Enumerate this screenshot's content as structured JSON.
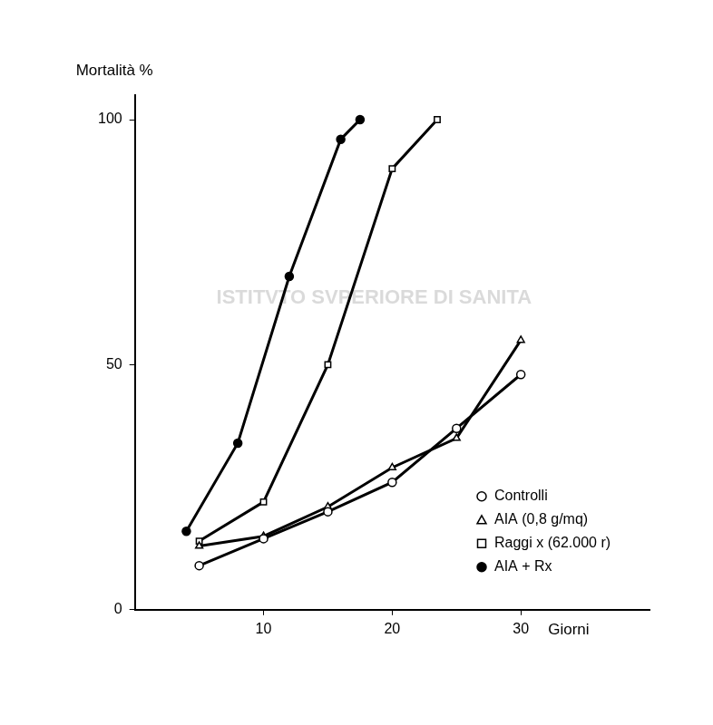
{
  "chart_data": {
    "type": "line",
    "y_label": "Mortalità %",
    "x_label": "Giorni",
    "annotations": [
      "ISTITVTO SVPERIORE DI SANITA"
    ],
    "xlim": [
      0,
      40
    ],
    "xticks": [
      10,
      20,
      30
    ],
    "ylim": [
      0,
      105
    ],
    "yticks": [
      0,
      50,
      100
    ],
    "grid": false,
    "legend": "lower right",
    "series": [
      {
        "name": "Controlli",
        "color": "#000000",
        "marker": "circle",
        "line_style": "solid",
        "x": [
          5,
          10,
          15,
          20,
          25,
          30
        ],
        "values": [
          9,
          14.5,
          20,
          26,
          37,
          48
        ]
      },
      {
        "name": "AIA (0,8 g/mq)",
        "color": "#000000",
        "marker": "triangle",
        "line_style": "solid",
        "x": [
          5,
          10,
          15,
          20,
          25,
          30
        ],
        "values": [
          13,
          15,
          21,
          29,
          35,
          55
        ]
      },
      {
        "name": "Raggi x (62.000 r)",
        "color": "#000000",
        "marker": "square",
        "line_style": "solid",
        "x": [
          5,
          10,
          15,
          20,
          23.5
        ],
        "values": [
          14,
          22,
          50,
          90,
          100
        ]
      },
      {
        "name": "AIA + Rx",
        "color": "#000000",
        "marker": "dot",
        "line_style": "solid",
        "x": [
          4,
          8,
          12,
          16,
          17.5
        ],
        "values": [
          16,
          34,
          68,
          96,
          100
        ]
      }
    ]
  }
}
